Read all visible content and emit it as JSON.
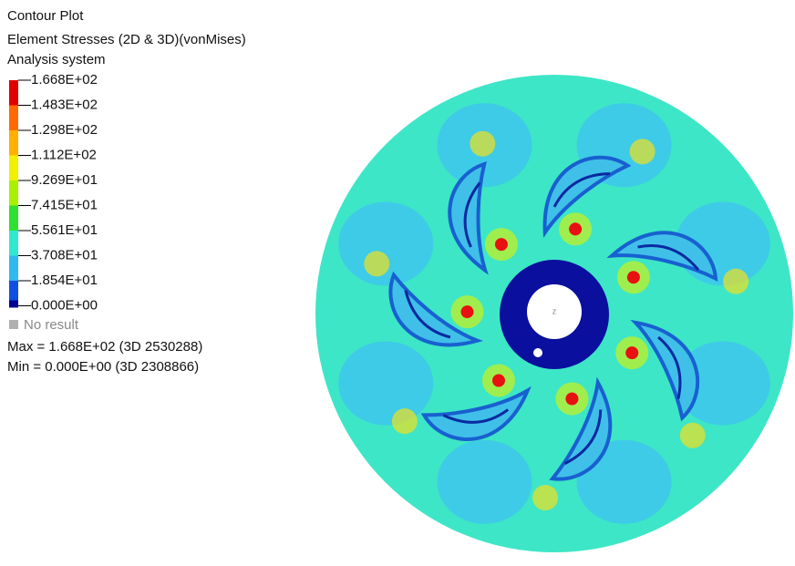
{
  "header": {
    "title": "Contour Plot",
    "result": "Element Stresses (2D & 3D)(vonMises)",
    "system": "Analysis system"
  },
  "legend": {
    "labels": [
      "1.668E+02",
      "1.483E+02",
      "1.298E+02",
      "1.112E+02",
      "9.269E+01",
      "7.415E+01",
      "5.561E+01",
      "3.708E+01",
      "1.854E+01",
      "0.000E+00"
    ],
    "no_result": "No result"
  },
  "summary": {
    "max": "Max = 1.668E+02 (3D 2530288)",
    "min": "Min = 0.000E+00 (3D 2308866)"
  },
  "model": {
    "axis_label": "z"
  }
}
